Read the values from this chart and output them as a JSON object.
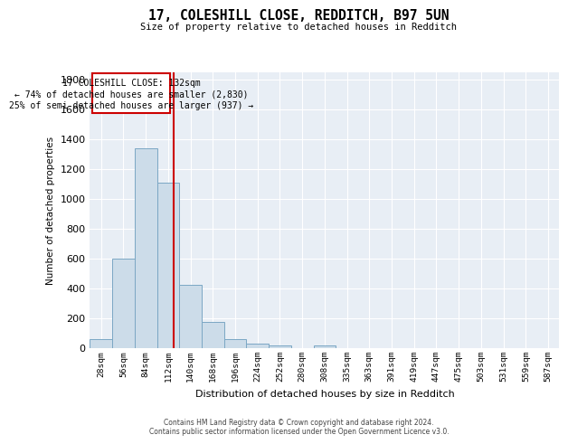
{
  "title_line1": "17, COLESHILL CLOSE, REDDITCH, B97 5UN",
  "title_line2": "Size of property relative to detached houses in Redditch",
  "xlabel": "Distribution of detached houses by size in Redditch",
  "ylabel": "Number of detached properties",
  "footer_line1": "Contains HM Land Registry data © Crown copyright and database right 2024.",
  "footer_line2": "Contains public sector information licensed under the Open Government Licence v3.0.",
  "bin_labels": [
    "28sqm",
    "56sqm",
    "84sqm",
    "112sqm",
    "140sqm",
    "168sqm",
    "196sqm",
    "224sqm",
    "252sqm",
    "280sqm",
    "308sqm",
    "335sqm",
    "363sqm",
    "391sqm",
    "419sqm",
    "447sqm",
    "475sqm",
    "503sqm",
    "531sqm",
    "559sqm",
    "587sqm"
  ],
  "bar_values": [
    55,
    595,
    1340,
    1110,
    420,
    170,
    55,
    30,
    15,
    0,
    15,
    0,
    0,
    0,
    0,
    0,
    0,
    0,
    0,
    0,
    0
  ],
  "bar_color": "#ccdce9",
  "bar_edge_color": "#7ba7c4",
  "property_line_x": 3.75,
  "annotation_text_line1": "17 COLESHILL CLOSE: 132sqm",
  "annotation_text_line2": "← 74% of detached houses are smaller (2,830)",
  "annotation_text_line3": "25% of semi-detached houses are larger (937) →",
  "annotation_box_color": "#cc0000",
  "line_color": "#cc0000",
  "ylim_max": 1850,
  "yticks": [
    0,
    200,
    400,
    600,
    800,
    1000,
    1200,
    1400,
    1600,
    1800
  ],
  "background_color": "#e8eef5",
  "grid_color": "white"
}
